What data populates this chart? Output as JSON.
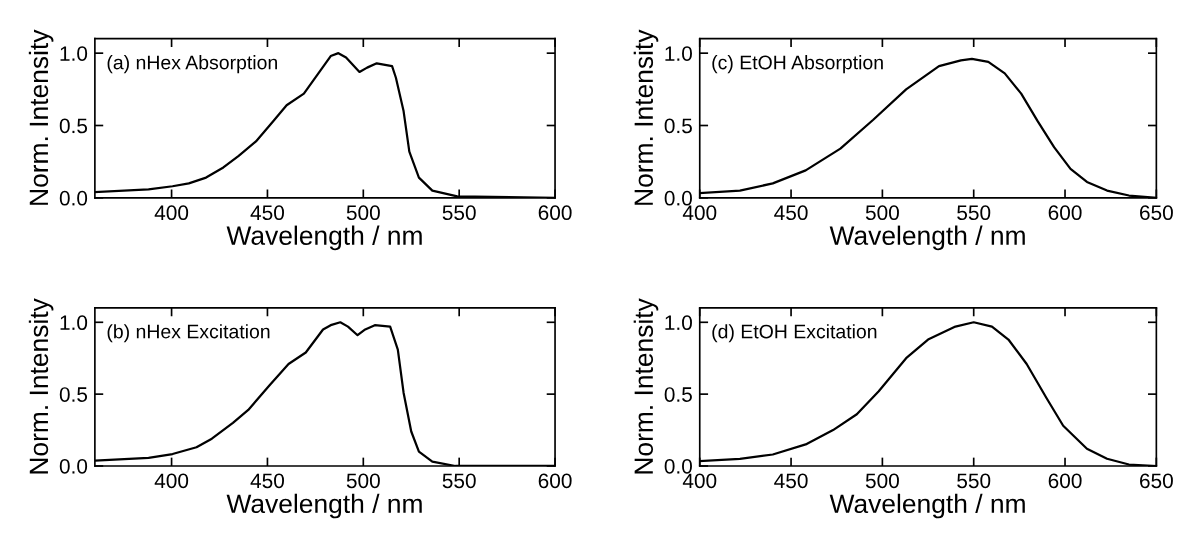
{
  "chart_data": [
    {
      "type": "line",
      "xlabel": "Wavelength / nm",
      "ylabel": "Norm. Intensity",
      "annotations": [
        "(a) nHex Absorption"
      ],
      "xlim": [
        360,
        600
      ],
      "xticks": [
        400,
        450,
        500,
        550,
        600
      ],
      "ylim": [
        0,
        1.1
      ],
      "yticks": [
        {
          "value": 0,
          "label": "0.0"
        },
        {
          "value": 0.5,
          "label": "0.5"
        },
        {
          "value": 1,
          "label": "1.0"
        }
      ],
      "grid": false,
      "legend": false,
      "marker": "none",
      "line_style": "solid",
      "series": [
        {
          "color": "#000000",
          "x": [
            360,
            388,
            400.5,
            409,
            418,
            427,
            435,
            444,
            453,
            460,
            469,
            476,
            483,
            487,
            491,
            498,
            502,
            507,
            515,
            517,
            521,
            524,
            529,
            536,
            549,
            600
          ],
          "values": [
            0.04,
            0.058,
            0.08,
            0.1,
            0.14,
            0.21,
            0.29,
            0.39,
            0.53,
            0.64,
            0.72,
            0.85,
            0.98,
            1.0,
            0.97,
            0.87,
            0.9,
            0.93,
            0.91,
            0.83,
            0.6,
            0.32,
            0.14,
            0.05,
            0.01,
            0.0
          ]
        }
      ]
    },
    {
      "type": "line",
      "xlabel": "Wavelength / nm",
      "ylabel": "Norm. Intensity",
      "annotations": [
        "(c) EtOH Absorption"
      ],
      "xlim": [
        400,
        650
      ],
      "xticks": [
        400,
        450,
        500,
        550,
        600,
        650
      ],
      "ylim": [
        0,
        1.1
      ],
      "yticks": [
        {
          "value": 0,
          "label": "0.0"
        },
        {
          "value": 0.5,
          "label": "0.5"
        },
        {
          "value": 1,
          "label": "1.0"
        }
      ],
      "grid": false,
      "legend": false,
      "marker": "none",
      "line_style": "solid",
      "series": [
        {
          "color": "#000000",
          "x": [
            400,
            422,
            440,
            458,
            477,
            495,
            513,
            531,
            543,
            549,
            558,
            567,
            576,
            585,
            594,
            603,
            612,
            623,
            635,
            650
          ],
          "values": [
            0.033,
            0.05,
            0.1,
            0.19,
            0.34,
            0.54,
            0.75,
            0.91,
            0.95,
            0.96,
            0.94,
            0.86,
            0.72,
            0.53,
            0.35,
            0.2,
            0.11,
            0.05,
            0.016,
            0.0
          ]
        }
      ]
    },
    {
      "type": "line",
      "xlabel": "Wavelength / nm",
      "ylabel": "Norm. Intensity",
      "annotations": [
        "(b) nHex Excitation"
      ],
      "xlim": [
        360,
        600
      ],
      "xticks": [
        400,
        450,
        500,
        550,
        600
      ],
      "ylim": [
        0,
        1.1
      ],
      "yticks": [
        {
          "value": 0,
          "label": "0.0"
        },
        {
          "value": 0.5,
          "label": "0.5"
        },
        {
          "value": 1,
          "label": "1.0"
        }
      ],
      "grid": false,
      "legend": false,
      "marker": "none",
      "line_style": "solid",
      "series": [
        {
          "color": "#000000",
          "x": [
            360,
            388,
            400.5,
            413,
            421,
            432,
            440,
            451,
            461,
            470,
            479,
            483,
            488,
            492,
            497,
            501,
            506,
            514,
            518,
            521,
            525,
            529,
            536,
            548,
            600
          ],
          "values": [
            0.037,
            0.057,
            0.083,
            0.13,
            0.19,
            0.3,
            0.39,
            0.56,
            0.71,
            0.79,
            0.95,
            0.98,
            1.0,
            0.97,
            0.91,
            0.95,
            0.98,
            0.97,
            0.81,
            0.51,
            0.24,
            0.1,
            0.03,
            0.0,
            0.0
          ]
        }
      ]
    },
    {
      "type": "line",
      "xlabel": "Wavelength / nm",
      "ylabel": "Norm. Intensity",
      "annotations": [
        "(d) EtOH Excitation"
      ],
      "xlim": [
        400,
        650
      ],
      "xticks": [
        400,
        450,
        500,
        550,
        600,
        650
      ],
      "ylim": [
        0,
        1.1
      ],
      "yticks": [
        {
          "value": 0,
          "label": "0.0"
        },
        {
          "value": 0.5,
          "label": "0.5"
        },
        {
          "value": 1,
          "label": "1.0"
        }
      ],
      "grid": false,
      "legend": false,
      "marker": "none",
      "line_style": "solid",
      "series": [
        {
          "color": "#000000",
          "x": [
            400,
            422,
            440,
            458,
            473,
            486,
            498,
            513,
            525,
            540,
            550,
            560,
            569,
            579,
            590,
            599,
            612,
            623,
            635,
            650
          ],
          "values": [
            0.034,
            0.05,
            0.08,
            0.15,
            0.25,
            0.36,
            0.52,
            0.75,
            0.88,
            0.97,
            1.0,
            0.97,
            0.88,
            0.71,
            0.47,
            0.28,
            0.12,
            0.05,
            0.01,
            0.0
          ]
        }
      ]
    }
  ]
}
